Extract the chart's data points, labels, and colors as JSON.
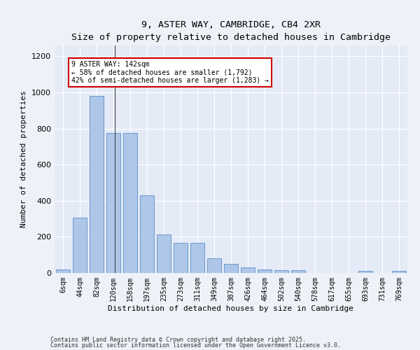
{
  "title": "9, ASTER WAY, CAMBRIDGE, CB4 2XR",
  "subtitle": "Size of property relative to detached houses in Cambridge",
  "xlabel": "Distribution of detached houses by size in Cambridge",
  "ylabel": "Number of detached properties",
  "categories": [
    "6sqm",
    "44sqm",
    "82sqm",
    "120sqm",
    "158sqm",
    "197sqm",
    "235sqm",
    "273sqm",
    "311sqm",
    "349sqm",
    "387sqm",
    "426sqm",
    "464sqm",
    "502sqm",
    "540sqm",
    "578sqm",
    "617sqm",
    "655sqm",
    "693sqm",
    "731sqm",
    "769sqm"
  ],
  "values": [
    20,
    305,
    980,
    775,
    775,
    430,
    215,
    165,
    165,
    80,
    50,
    32,
    20,
    15,
    15,
    0,
    0,
    0,
    10,
    0,
    13
  ],
  "bar_color": "#aec6e8",
  "bar_edge_color": "#5b8fc9",
  "annotation_line1": "9 ASTER WAY: 142sqm",
  "annotation_line2": "← 58% of detached houses are smaller (1,792)",
  "annotation_line3": "42% of semi-detached houses are larger (1,283) →",
  "annotation_box_color": "#ffffff",
  "annotation_box_edge": "#cc0000",
  "ylim": [
    0,
    1260
  ],
  "yticks": [
    0,
    200,
    400,
    600,
    800,
    1000,
    1200
  ],
  "footer1": "Contains HM Land Registry data © Crown copyright and database right 2025.",
  "footer2": "Contains public sector information licensed under the Open Government Licence v3.0.",
  "background_color": "#eef2f8",
  "plot_bg_color": "#e4eaf6",
  "title_fontsize": 9.5,
  "subtitle_fontsize": 8.5,
  "ylabel_fontsize": 8,
  "xlabel_fontsize": 8,
  "tick_fontsize": 7,
  "annotation_fontsize": 7,
  "footer_fontsize": 6
}
